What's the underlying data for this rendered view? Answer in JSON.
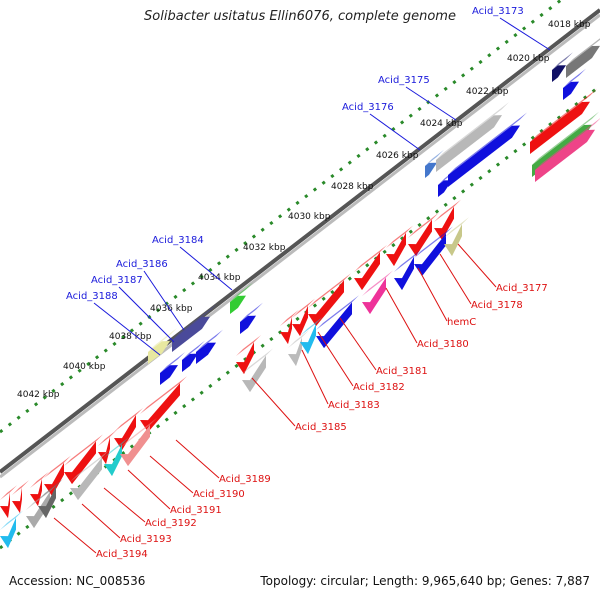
{
  "title": "Solibacter usitatus Ellin6076, complete genome",
  "footer": {
    "accession": "Accession: NC_008536",
    "stats": "Topology: circular; Length: 9,965,640 bp; Genes: 7,887"
  },
  "colors": {
    "forward_label": "#1a1adb",
    "reverse_label": "#dd1111",
    "backbone": "#777777",
    "tick": "#2a8a2a"
  },
  "kbp_ticks": [
    "4018 kbp",
    "4020 kbp",
    "4022 kbp",
    "4024 kbp",
    "4026 kbp",
    "4028 kbp",
    "4030 kbp",
    "4032 kbp",
    "4034 kbp",
    "4036 kbp",
    "4038 kbp",
    "4040 kbp",
    "4042 kbp"
  ],
  "forward_labels": [
    "Acid_3173",
    "Acid_3175",
    "Acid_3176",
    "Acid_3184",
    "Acid_3186",
    "Acid_3187",
    "Acid_3188"
  ],
  "reverse_labels": [
    "Acid_3177",
    "Acid_3178",
    "hemC",
    "Acid_3180",
    "Acid_3181",
    "Acid_3182",
    "Acid_3183",
    "Acid_3185",
    "Acid_3189",
    "Acid_3190",
    "Acid_3191",
    "Acid_3192",
    "Acid_3193",
    "Acid_3194"
  ]
}
